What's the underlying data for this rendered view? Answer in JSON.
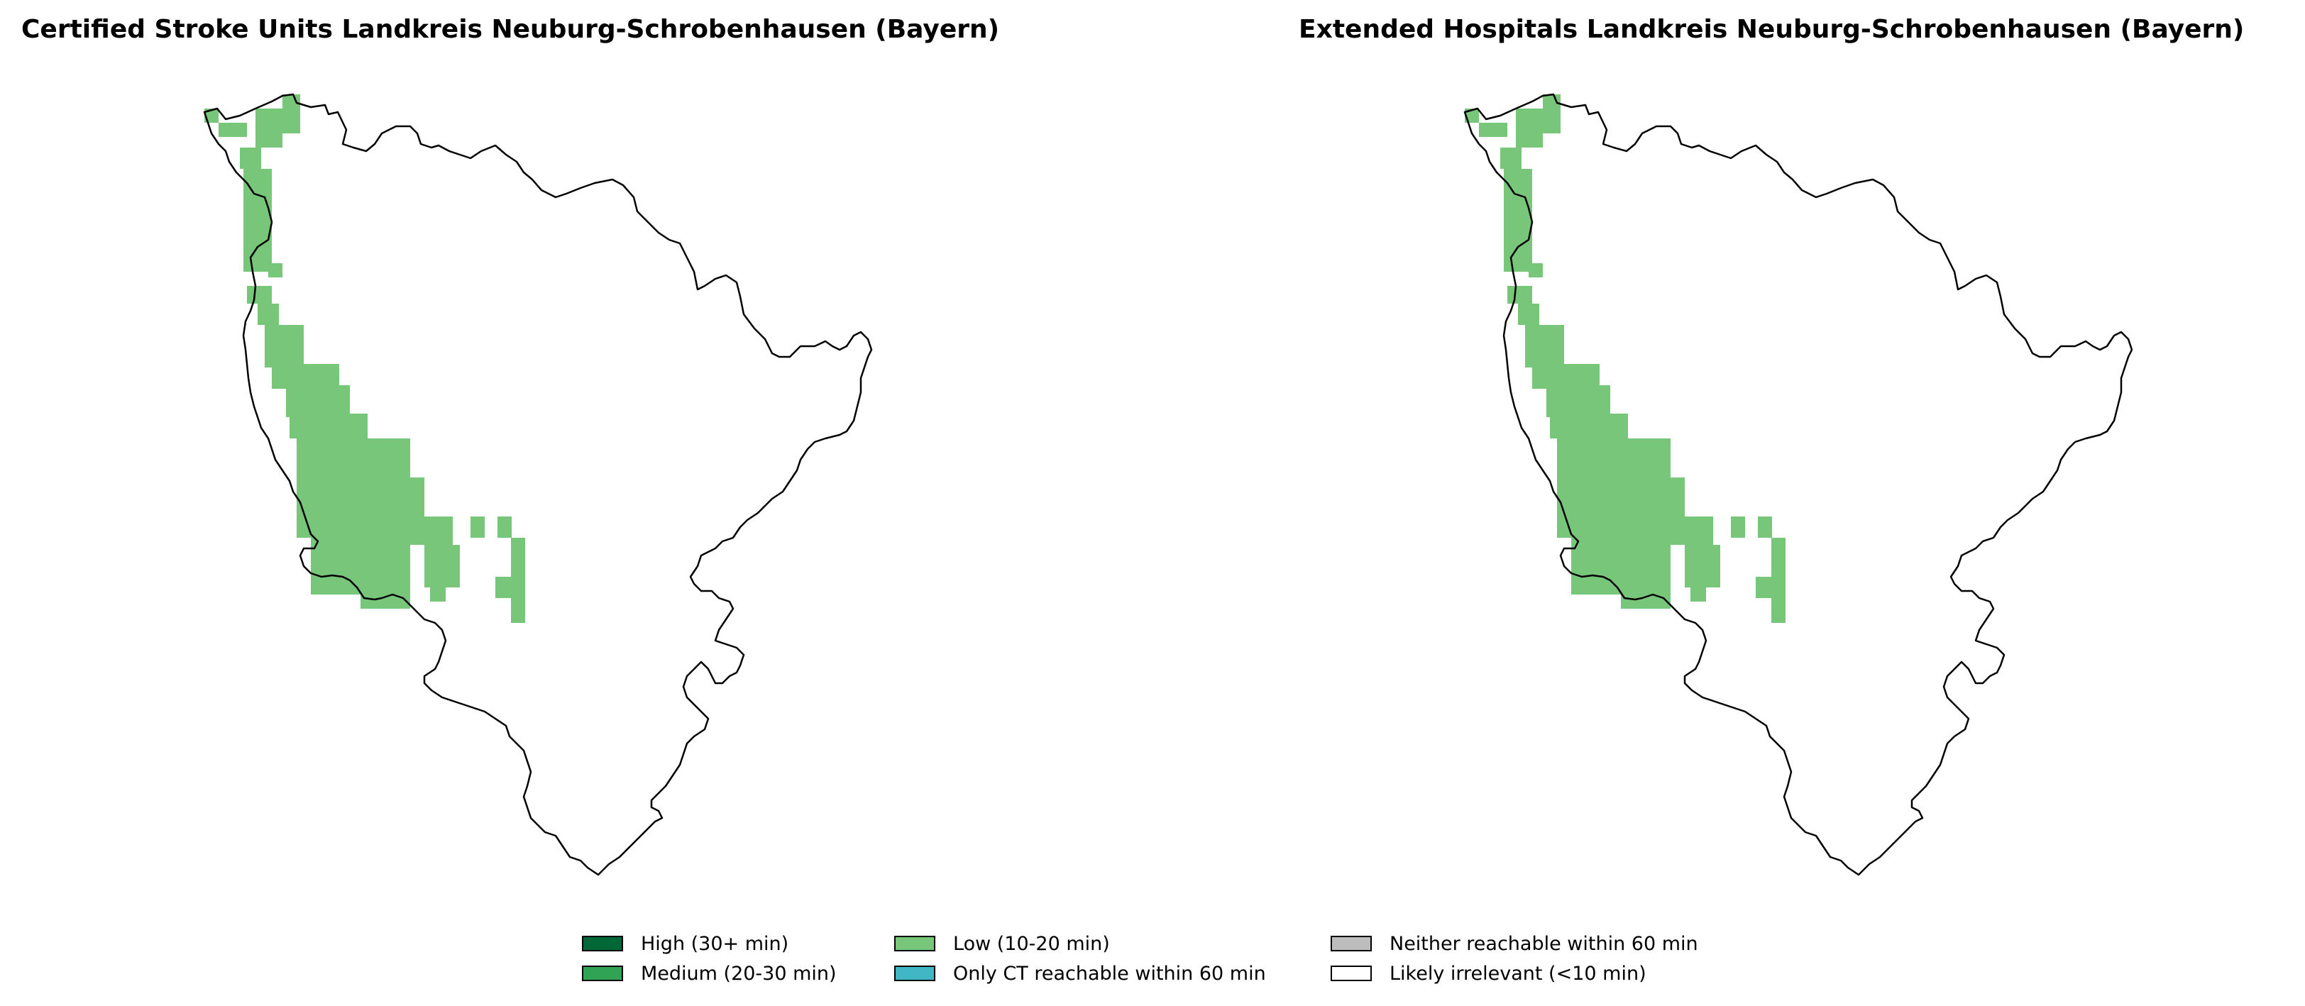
{
  "maps": [
    {
      "title": "Certified Stroke Units Landkreis Neuburg-Schrobenhausen (Bayern)"
    },
    {
      "title": "Extended Hospitals Landkreis Neuburg-Schrobenhausen (Bayern)"
    }
  ],
  "legend": {
    "items": [
      {
        "label": "High (30+ min)",
        "color": "#006837"
      },
      {
        "label": "Medium (20-30 min)",
        "color": "#31a354"
      },
      {
        "label": "Low (10-20 min)",
        "color": "#78c679"
      },
      {
        "label": "Only CT reachable within 60 min",
        "color": "#41b6c4"
      },
      {
        "label": "Neither reachable within 60 min",
        "color": "#bdbdbd"
      },
      {
        "label": "Likely irrelevant (<10 min)",
        "color": "#ffffff"
      }
    ]
  }
}
